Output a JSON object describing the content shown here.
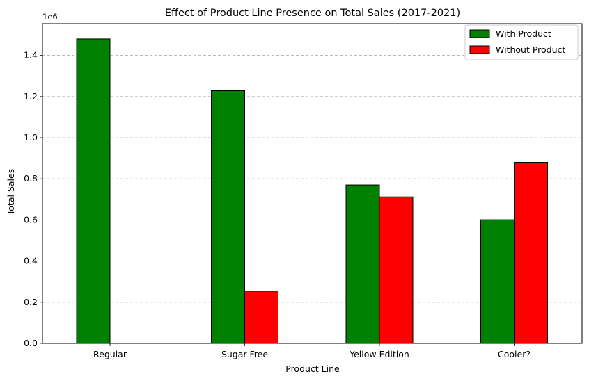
{
  "chart_data": {
    "type": "bar",
    "title": "Effect of Product Line Presence on Total Sales (2017-2021)",
    "xlabel": "Product Line",
    "ylabel": "Total Sales",
    "y_offset_text": "1e6",
    "categories": [
      "Regular",
      "Sugar Free",
      "Yellow Edition",
      "Cooler?"
    ],
    "series": [
      {
        "name": "With Product",
        "color": "#008000",
        "values": [
          1480000,
          1228000,
          770000,
          601000
        ]
      },
      {
        "name": "Without Product",
        "color": "#ff0000",
        "values": [
          0,
          254000,
          712000,
          880000
        ]
      }
    ],
    "ylim": [
      0,
      1554000
    ],
    "yticks": [
      0,
      200000,
      400000,
      600000,
      800000,
      1000000,
      1200000,
      1400000
    ],
    "ytick_labels": [
      "0.0",
      "0.2",
      "0.4",
      "0.6",
      "0.8",
      "1.0",
      "1.2",
      "1.4"
    ],
    "grid": "y-dashed",
    "legend_position": "top-right"
  }
}
